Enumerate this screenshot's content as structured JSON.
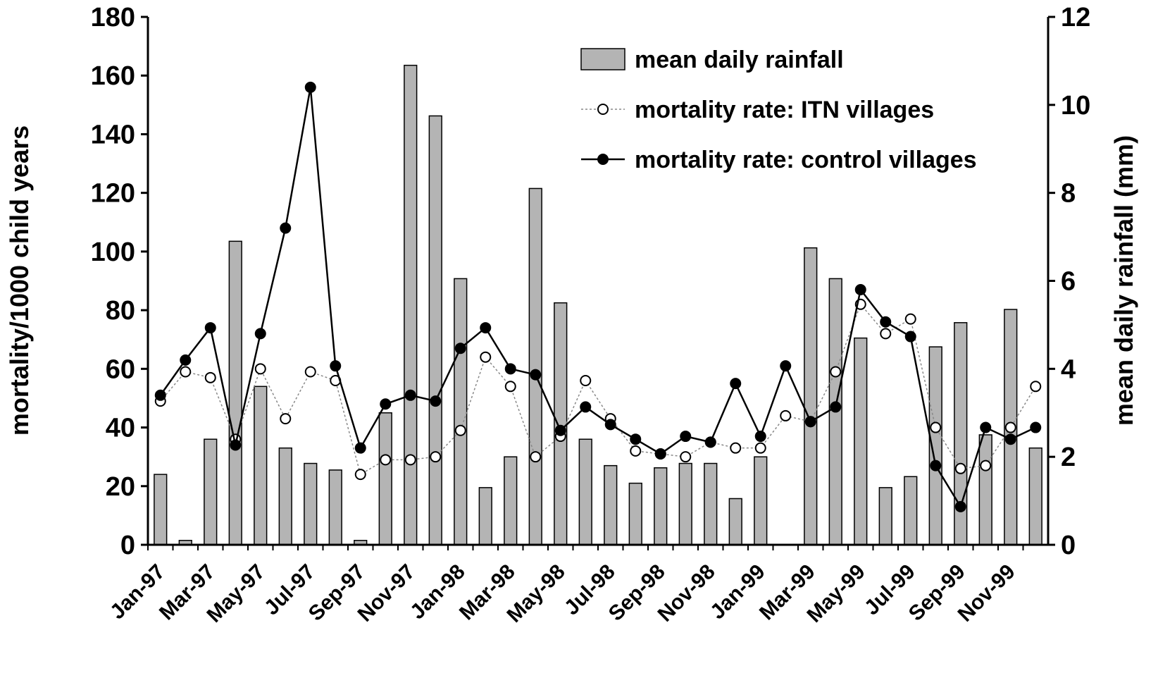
{
  "chart_data": {
    "type": "bar_line",
    "ylabel": "mortality/1000 child years",
    "y2label": "mean daily rainfall (mm)",
    "categories": [
      "Jan-97",
      null,
      "Mar-97",
      null,
      "May-97",
      null,
      "Jul-97",
      null,
      "Sep-97",
      null,
      "Nov-97",
      null,
      "Jan-98",
      null,
      "Mar-98",
      null,
      "May-98",
      null,
      "Jul-98",
      null,
      "Sep-98",
      null,
      "Nov-98",
      null,
      "Jan-99",
      null,
      "Mar-99",
      null,
      "May-99",
      null,
      "Jul-99",
      null,
      "Sep-99",
      null,
      "Nov-99",
      null
    ],
    "series": [
      {
        "name": "mean daily rainfall",
        "color": "#b4b4b4",
        "axis": "y2",
        "kind": "bar",
        "values": [
          1.6,
          0.1,
          2.4,
          6.9,
          3.6,
          2.2,
          1.85,
          1.7,
          0.1,
          3.0,
          10.9,
          9.75,
          6.05,
          1.3,
          2.0,
          8.1,
          5.5,
          2.4,
          1.8,
          1.4,
          1.75,
          1.85,
          1.85,
          1.05,
          2.0,
          null,
          6.75,
          6.05,
          4.7,
          1.3,
          1.55,
          4.5,
          5.05,
          2.5,
          5.35,
          2.2
        ]
      },
      {
        "name": "mortality rate: ITN villages",
        "color": "#ffffff",
        "kind": "line",
        "values": [
          49,
          59,
          57,
          36,
          60,
          43,
          59,
          56,
          24,
          29,
          29,
          30,
          39,
          64,
          54,
          30,
          37,
          56,
          43,
          32,
          31,
          30,
          35,
          33,
          33,
          44,
          42,
          59,
          82,
          72,
          77,
          40,
          26,
          27,
          40,
          54
        ]
      },
      {
        "name": "mortality rate: control villages",
        "color": "#000000",
        "kind": "line",
        "values": [
          51,
          63,
          74,
          34,
          72,
          108,
          156,
          61,
          33,
          48,
          51,
          49,
          67,
          74,
          60,
          58,
          39,
          47,
          41,
          36,
          31,
          37,
          35,
          55,
          37,
          61,
          42,
          47,
          87,
          76,
          71,
          27,
          13,
          40,
          36,
          40
        ]
      }
    ],
    "ylim": [
      0,
      180
    ],
    "yticks": [
      0,
      20,
      40,
      60,
      80,
      100,
      120,
      140,
      160,
      180
    ],
    "y2lim": [
      0,
      12
    ],
    "y2ticks": [
      0,
      2,
      4,
      6,
      8,
      10,
      12
    ],
    "legend": "upper right"
  }
}
